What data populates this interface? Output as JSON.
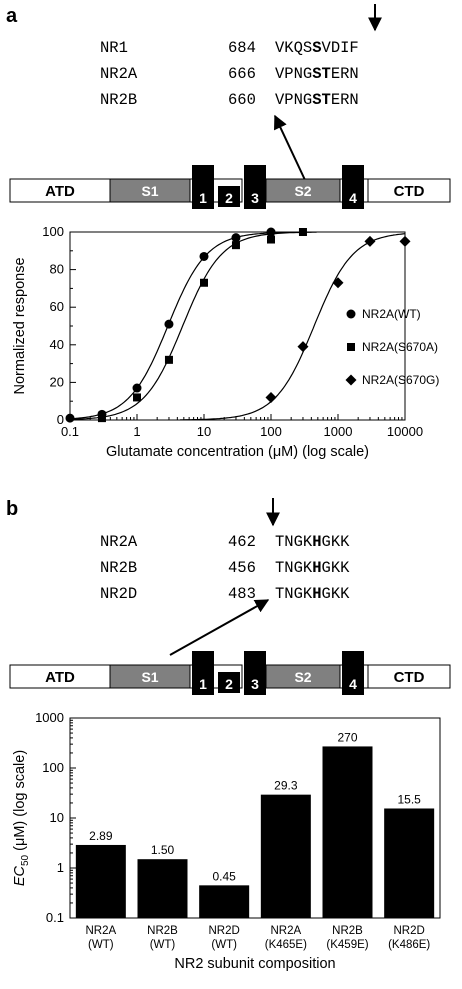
{
  "panel_a": {
    "label": "a",
    "sequences": [
      {
        "name": "NR1",
        "pos": "684",
        "pre": "VKQS",
        "bold": "S",
        "post": "VDIF"
      },
      {
        "name": "NR2A",
        "pos": "666",
        "pre": "VPNG",
        "bold": "ST",
        "post": "ERN"
      },
      {
        "name": "NR2B",
        "pos": "660",
        "pre": "VPNG",
        "bold": "ST",
        "post": "ERN"
      }
    ],
    "domains": {
      "atd": "ATD",
      "s1": "S1",
      "m1": "1",
      "m2": "2",
      "m3": "3",
      "s2": "S2",
      "m4": "4",
      "ctd": "CTD"
    }
  },
  "panel_b": {
    "label": "b",
    "sequences": [
      {
        "name": "NR2A",
        "pos": "462",
        "pre": "TNGK",
        "bold": "H",
        "post": "GKK"
      },
      {
        "name": "NR2B",
        "pos": "456",
        "pre": "TNGK",
        "bold": "H",
        "post": "GKK"
      },
      {
        "name": "NR2D",
        "pos": "483",
        "pre": "TNGK",
        "bold": "H",
        "post": "GKK"
      }
    ],
    "domains": {
      "atd": "ATD",
      "s1": "S1",
      "m1": "1",
      "m2": "2",
      "m3": "3",
      "s2": "S2",
      "m4": "4",
      "ctd": "CTD"
    }
  },
  "chart_data": [
    {
      "type": "scatter",
      "xlabel": "Glutamate concentration (μM) (log scale)",
      "ylabel": "Normalized response",
      "xscale": "log",
      "xlim": [
        0.1,
        10000
      ],
      "ylim": [
        0,
        100
      ],
      "x_ticks": [
        "0.1",
        "1",
        "10",
        "100",
        "1000",
        "10000"
      ],
      "y_ticks": [
        "0",
        "20",
        "40",
        "60",
        "80",
        "100"
      ],
      "legend_position": "right",
      "series": [
        {
          "name": "NR2A(WT)",
          "marker": "circle",
          "x": [
            0.1,
            0.3,
            1,
            3,
            10,
            30,
            100
          ],
          "y": [
            1,
            3,
            17,
            51,
            87,
            97,
            100
          ],
          "ec50": 2.89
        },
        {
          "name": "NR2A(S670A)",
          "marker": "square",
          "x": [
            0.3,
            1,
            3,
            10,
            30,
            100,
            300
          ],
          "y": [
            1,
            12,
            32,
            73,
            93,
            96,
            100
          ],
          "ec50": 4.8
        },
        {
          "name": "NR2A(S670G)",
          "marker": "diamond",
          "x": [
            100,
            300,
            1000,
            3000,
            10000
          ],
          "y": [
            12,
            39,
            73,
            95,
            95
          ],
          "ec50": 440
        }
      ]
    },
    {
      "type": "bar",
      "ylabel": "EC50 (μM) (log scale)",
      "ylabel_main": "EC",
      "ylabel_sub": "50",
      "ylabel_rest": " (μM) (log scale)",
      "xlabel": "NR2 subunit composition",
      "yscale": "log",
      "ylim": [
        0.1,
        1000
      ],
      "y_ticks": [
        "0.1",
        "1",
        "10",
        "100",
        "1000"
      ],
      "categories": [
        [
          "NR2A",
          "(WT)"
        ],
        [
          "NR2B",
          "(WT)"
        ],
        [
          "NR2D",
          "(WT)"
        ],
        [
          "NR2A",
          "(K465E)"
        ],
        [
          "NR2B",
          "(K459E)"
        ],
        [
          "NR2D",
          "(K486E)"
        ]
      ],
      "values": [
        2.89,
        1.5,
        0.45,
        29.3,
        270,
        15.5
      ],
      "value_labels": [
        "2.89",
        "1.50",
        "0.45",
        "29.3",
        "270",
        "15.5"
      ]
    }
  ]
}
